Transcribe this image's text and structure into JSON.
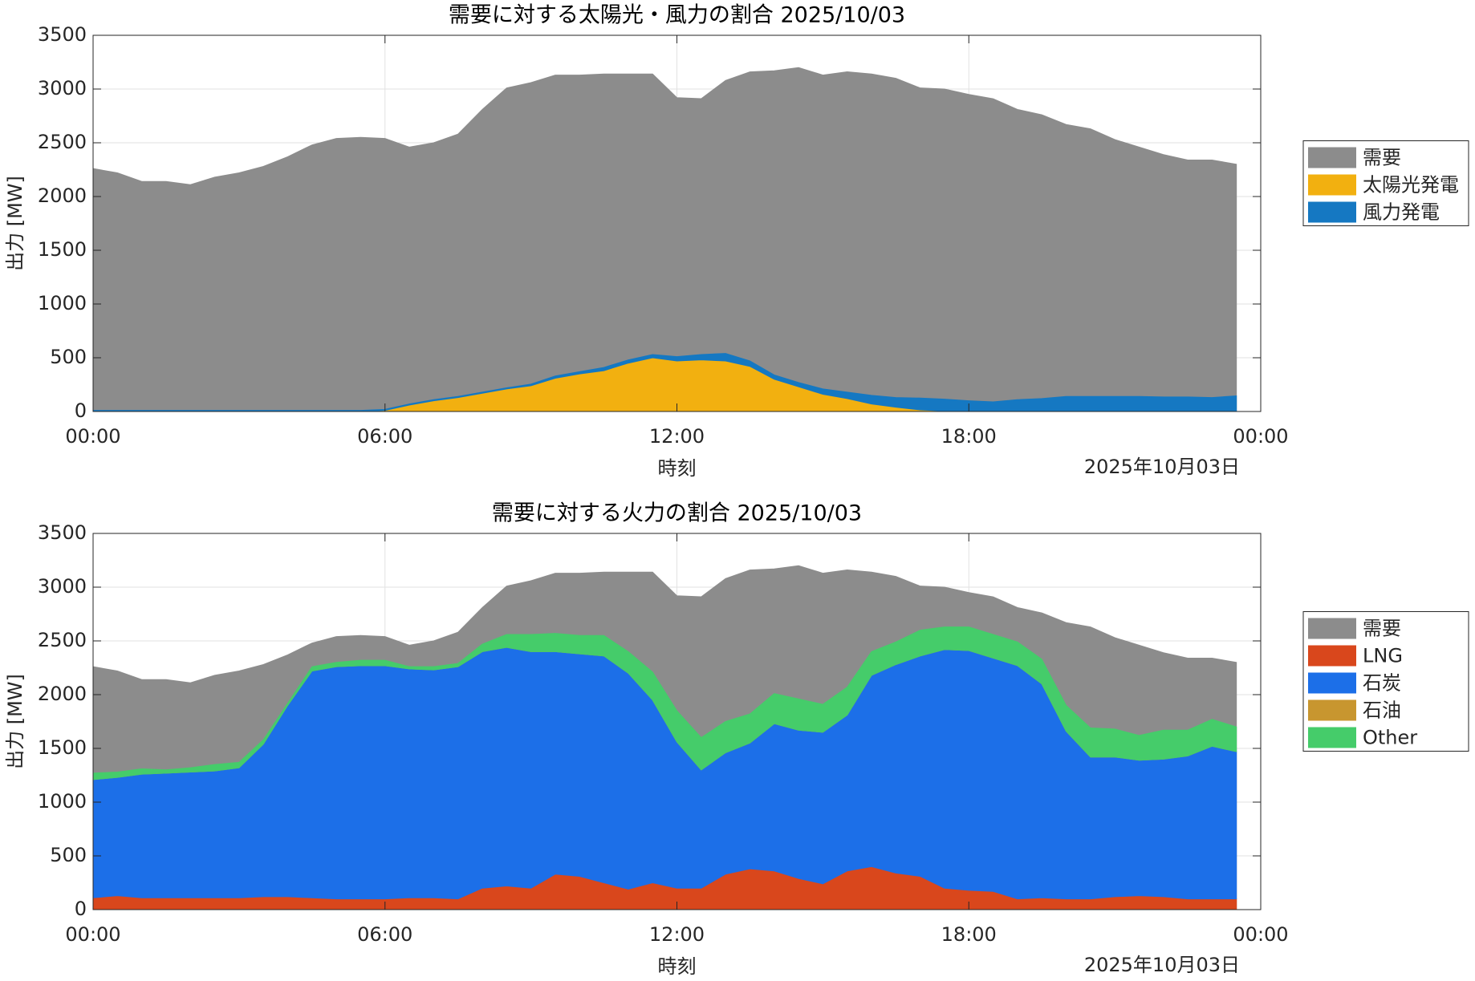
{
  "chart_data": [
    {
      "type": "area",
      "title": "需要に対する太陽光・風力の割合 2025/10/03",
      "x_label": "時刻",
      "date_label": "2025年10月03日",
      "y_label": "出力 [MW]",
      "x": [
        0,
        0.5,
        1,
        1.5,
        2,
        2.5,
        3,
        3.5,
        4,
        4.5,
        5,
        5.5,
        6,
        6.5,
        7,
        7.5,
        8,
        8.5,
        9,
        9.5,
        10,
        10.5,
        11,
        11.5,
        12,
        12.5,
        13,
        13.5,
        14,
        14.5,
        15,
        15.5,
        16,
        16.5,
        17,
        17.5,
        18,
        18.5,
        19,
        19.5,
        20,
        20.5,
        21,
        21.5,
        22,
        22.5,
        23,
        23.5
      ],
      "series": [
        {
          "name": "需要",
          "color": "#8c8c8c",
          "values": [
            2260,
            2220,
            2140,
            2140,
            2110,
            2180,
            2220,
            2280,
            2370,
            2480,
            2540,
            2550,
            2540,
            2460,
            2500,
            2580,
            2810,
            3010,
            3060,
            3130,
            3130,
            3140,
            3140,
            3140,
            2920,
            2910,
            3080,
            3160,
            3170,
            3200,
            3130,
            3160,
            3140,
            3100,
            3010,
            3000,
            2950,
            2910,
            2810,
            2760,
            2670,
            2630,
            2530,
            2460,
            2390,
            2340,
            2340,
            2300
          ]
        },
        {
          "name": "太陽光発電",
          "color": "#f2b010",
          "values": [
            0,
            0,
            0,
            0,
            0,
            0,
            0,
            0,
            0,
            0,
            0,
            0,
            10,
            60,
            100,
            130,
            170,
            210,
            240,
            310,
            350,
            380,
            450,
            500,
            470,
            480,
            470,
            420,
            300,
            230,
            160,
            120,
            70,
            40,
            15,
            5,
            0,
            0,
            0,
            0,
            0,
            0,
            0,
            0,
            0,
            0,
            0,
            0
          ]
        },
        {
          "name": "風力発電",
          "color": "#1578c2",
          "values": [
            10,
            10,
            10,
            10,
            10,
            10,
            10,
            10,
            10,
            10,
            10,
            10,
            10,
            10,
            10,
            10,
            10,
            10,
            15,
            20,
            20,
            30,
            30,
            30,
            40,
            50,
            70,
            50,
            40,
            40,
            50,
            60,
            80,
            90,
            110,
            110,
            100,
            90,
            110,
            120,
            140,
            140,
            140,
            140,
            135,
            135,
            130,
            145
          ]
        }
      ],
      "xlim": [
        0,
        24
      ],
      "xticks": [
        {
          "value": 0,
          "label": "00:00"
        },
        {
          "value": 6,
          "label": "06:00"
        },
        {
          "value": 12,
          "label": "12:00"
        },
        {
          "value": 18,
          "label": "18:00"
        },
        {
          "value": 24,
          "label": "00:00"
        }
      ],
      "ylim": [
        0,
        3500
      ],
      "yticks": [
        0,
        500,
        1000,
        1500,
        2000,
        2500,
        3000,
        3500
      ],
      "grid": true,
      "legend": "right"
    },
    {
      "type": "area",
      "title": "需要に対する火力の割合 2025/10/03",
      "x_label": "時刻",
      "date_label": "2025年10月03日",
      "y_label": "出力 [MW]",
      "x": [
        0,
        0.5,
        1,
        1.5,
        2,
        2.5,
        3,
        3.5,
        4,
        4.5,
        5,
        5.5,
        6,
        6.5,
        7,
        7.5,
        8,
        8.5,
        9,
        9.5,
        10,
        10.5,
        11,
        11.5,
        12,
        12.5,
        13,
        13.5,
        14,
        14.5,
        15,
        15.5,
        16,
        16.5,
        17,
        17.5,
        18,
        18.5,
        19,
        19.5,
        20,
        20.5,
        21,
        21.5,
        22,
        22.5,
        23,
        23.5
      ],
      "series": [
        {
          "name": "需要",
          "color": "#8c8c8c",
          "values": [
            2260,
            2220,
            2140,
            2140,
            2110,
            2180,
            2220,
            2280,
            2370,
            2480,
            2540,
            2550,
            2540,
            2460,
            2500,
            2580,
            2810,
            3010,
            3060,
            3130,
            3130,
            3140,
            3140,
            3140,
            2920,
            2910,
            3080,
            3160,
            3170,
            3200,
            3130,
            3160,
            3140,
            3100,
            3010,
            3000,
            2950,
            2910,
            2810,
            2760,
            2670,
            2630,
            2530,
            2460,
            2390,
            2340,
            2340,
            2300
          ]
        },
        {
          "name": "LNG",
          "color": "#d9471c",
          "values": [
            110,
            130,
            110,
            110,
            110,
            110,
            110,
            120,
            120,
            110,
            100,
            100,
            100,
            110,
            110,
            100,
            200,
            220,
            200,
            330,
            310,
            250,
            190,
            250,
            200,
            200,
            330,
            380,
            360,
            290,
            240,
            360,
            400,
            340,
            310,
            200,
            180,
            170,
            100,
            110,
            100,
            100,
            120,
            130,
            120,
            100,
            100,
            100
          ]
        },
        {
          "name": "石炭",
          "color": "#1c6fe8",
          "values": [
            1100,
            1100,
            1150,
            1160,
            1170,
            1180,
            1210,
            1420,
            1780,
            2110,
            2160,
            2170,
            2170,
            2130,
            2120,
            2160,
            2200,
            2220,
            2200,
            2070,
            2070,
            2110,
            2010,
            1700,
            1360,
            1100,
            1130,
            1170,
            1370,
            1380,
            1410,
            1450,
            1780,
            1940,
            2050,
            2220,
            2230,
            2170,
            2170,
            1990,
            1560,
            1320,
            1300,
            1260,
            1280,
            1330,
            1420,
            1370
          ]
        },
        {
          "name": "石油",
          "color": "#c8962f",
          "values": [
            0,
            0,
            0,
            0,
            0,
            0,
            0,
            0,
            0,
            0,
            0,
            0,
            0,
            0,
            0,
            0,
            0,
            0,
            0,
            0,
            0,
            0,
            0,
            0,
            0,
            0,
            0,
            0,
            0,
            0,
            0,
            0,
            0,
            0,
            0,
            0,
            0,
            0,
            0,
            0,
            0,
            0,
            0,
            0,
            0,
            0,
            0,
            0
          ]
        },
        {
          "name": "Other",
          "color": "#45cc6a",
          "values": [
            60,
            50,
            50,
            30,
            40,
            60,
            50,
            40,
            20,
            40,
            40,
            50,
            50,
            20,
            30,
            30,
            70,
            120,
            160,
            170,
            170,
            190,
            200,
            260,
            290,
            300,
            290,
            270,
            280,
            290,
            260,
            260,
            220,
            210,
            240,
            210,
            220,
            220,
            220,
            230,
            240,
            270,
            260,
            230,
            270,
            240,
            250,
            230
          ]
        }
      ],
      "xlim": [
        0,
        24
      ],
      "xticks": [
        {
          "value": 0,
          "label": "00:00"
        },
        {
          "value": 6,
          "label": "06:00"
        },
        {
          "value": 12,
          "label": "12:00"
        },
        {
          "value": 18,
          "label": "18:00"
        },
        {
          "value": 24,
          "label": "00:00"
        }
      ],
      "ylim": [
        0,
        3500
      ],
      "yticks": [
        0,
        500,
        1000,
        1500,
        2000,
        2500,
        3000,
        3500
      ],
      "grid": true,
      "legend": "right"
    }
  ]
}
